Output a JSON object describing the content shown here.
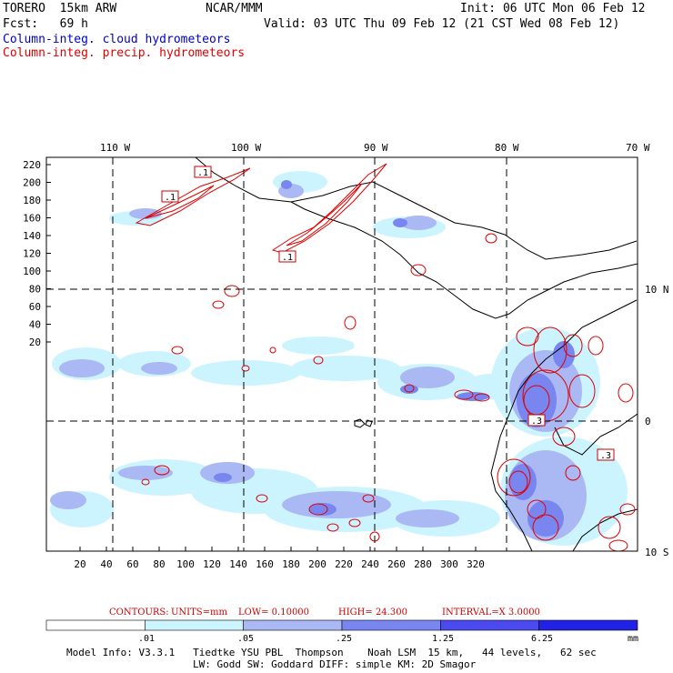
{
  "header": {
    "model": "TORERO  15km ARW",
    "center": "NCAR/MMM",
    "init": "Init: 06 UTC Mon 06 Feb 12",
    "fcst": "Fcst:   69 h",
    "valid": "Valid: 03 UTC Thu 09 Feb 12 (21 CST Wed 08 Feb 12)"
  },
  "legend": {
    "cloud": "Column-integ. cloud hydrometeors",
    "precip": "Column-integ. precip. hydrometeors",
    "cloud_color": "#0000cc",
    "precip_color": "#dd0000"
  },
  "map": {
    "lon_labels": [
      "110 W",
      "100 W",
      "90 W",
      "80 W",
      "70 W"
    ],
    "lat_labels": [
      "10 N",
      "0",
      "10 S"
    ],
    "y_ticks": [
      "220",
      "200",
      "180",
      "160",
      "140",
      "120",
      "100",
      "80",
      "60",
      "40",
      "20"
    ],
    "x_ticks": [
      "20",
      "40",
      "60",
      "80",
      "100",
      "120",
      "140",
      "160",
      "180",
      "200",
      "220",
      "240",
      "260",
      "280",
      "300",
      "320"
    ],
    "box_labels": [
      ".1",
      ".1",
      ".1",
      ".3",
      ".3"
    ]
  },
  "contours_line": {
    "label": "CONTOURS:",
    "units": "UNITS=mm",
    "low": "LOW= 0.10000",
    "high": "HIGH=  24.300",
    "interval": "INTERVAL=X  3.0000"
  },
  "colorbar": {
    "labels": [
      ".01",
      ".05",
      ".25",
      "1.25",
      "6.25",
      "mm"
    ],
    "colors": [
      "#ffffff",
      "#ccf4ff",
      "#aab8f4",
      "#7a86f0",
      "#4a4aee",
      "#2222e6"
    ]
  },
  "footer": {
    "line1": "Model Info: V3.3.1   Tiedtke YSU PBL  Thompson    Noah LSM  15 km,   44 levels,   62 sec",
    "line2": "LW: Godd SW: Goddard DIFF: simple KM: 2D Smagor"
  }
}
